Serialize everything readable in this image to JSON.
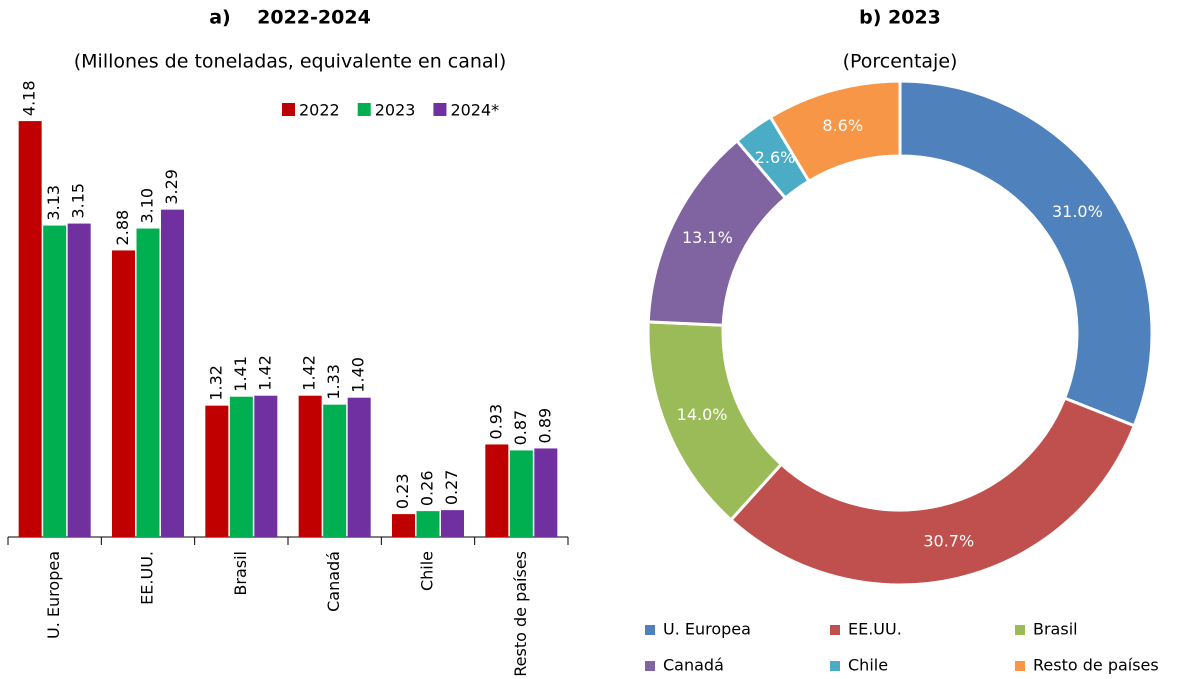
{
  "chart_data": [
    {
      "type": "bar",
      "title": "a)    2022-2024",
      "subtitle": "(Millones de toneladas, equivalente en canal)",
      "categories": [
        "U. Europea",
        "EE.UU.",
        "Brasil",
        "Canadá",
        "Chile",
        "Resto de países"
      ],
      "series": [
        {
          "name": "2022",
          "color": "#c00000",
          "values": [
            4.18,
            2.88,
            1.32,
            1.42,
            0.23,
            0.93
          ],
          "value_labels": [
            "4.18",
            "2.88",
            "1.32",
            "1.42",
            "0.23",
            "0.93"
          ]
        },
        {
          "name": "2023",
          "color": "#00b050",
          "values": [
            3.13,
            3.1,
            1.41,
            1.33,
            0.26,
            0.87
          ],
          "value_labels": [
            "3.13",
            "3.10",
            "1.41",
            "1.33",
            "0.26",
            "0.87"
          ]
        },
        {
          "name": "2024*",
          "color": "#7030a0",
          "values": [
            3.15,
            3.29,
            1.42,
            1.4,
            0.27,
            0.89
          ],
          "value_labels": [
            "3.15",
            "3.29",
            "1.42",
            "1.40",
            "0.27",
            "0.89"
          ]
        }
      ],
      "legend": "top-right"
    },
    {
      "type": "donut",
      "title": "b) 2023",
      "subtitle": "(Porcentaje)",
      "categories": [
        "U. Europea",
        "EE.UU.",
        "Brasil",
        "Canadá",
        "Chile",
        "Resto de países"
      ],
      "values": [
        31.0,
        30.7,
        14.0,
        13.1,
        2.6,
        8.6
      ],
      "value_labels": [
        "31.0%",
        "30.7%",
        "14.0%",
        "13.1%",
        "2.6%",
        "8.6%"
      ],
      "colors": [
        "#4f81bd",
        "#c0504d",
        "#9bbb59",
        "#8064a2",
        "#4bacc6",
        "#f79646"
      ],
      "legend": "bottom"
    }
  ]
}
